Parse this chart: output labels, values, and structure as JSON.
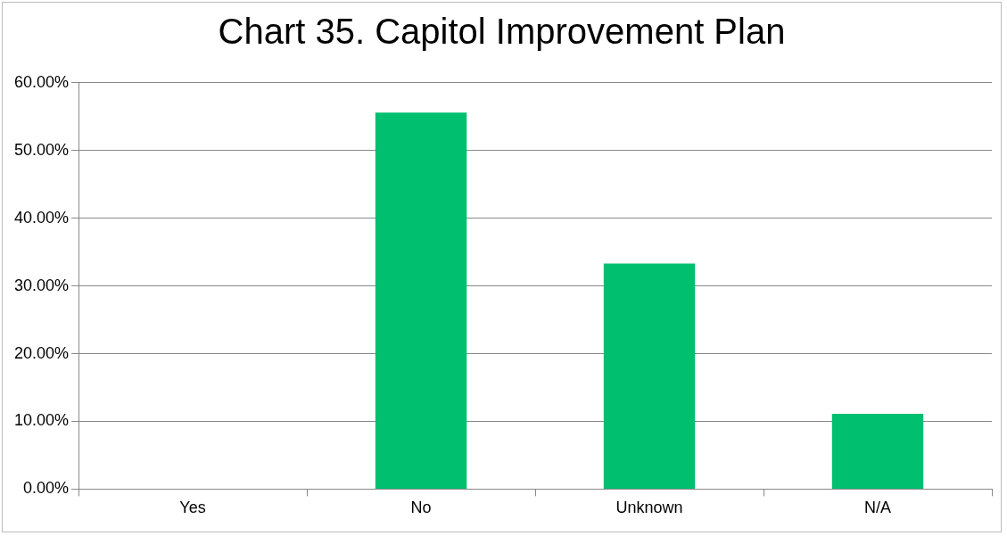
{
  "chart_data": {
    "type": "bar",
    "title": "Chart 35. Capitol Improvement Plan",
    "categories": [
      "Yes",
      "No",
      "Unknown",
      "N/A"
    ],
    "values": [
      0,
      55.6,
      33.3,
      11.1
    ],
    "color": "#00bf6f",
    "ylim": [
      0,
      60
    ],
    "yticks": [
      {
        "value": 0,
        "label": "0.00%"
      },
      {
        "value": 10,
        "label": "10.00%"
      },
      {
        "value": 20,
        "label": "20.00%"
      },
      {
        "value": 30,
        "label": "30.00%"
      },
      {
        "value": 40,
        "label": "40.00%"
      },
      {
        "value": 50,
        "label": "50.00%"
      },
      {
        "value": 60,
        "label": "60.00%"
      }
    ],
    "grid": "y",
    "legend": false
  }
}
